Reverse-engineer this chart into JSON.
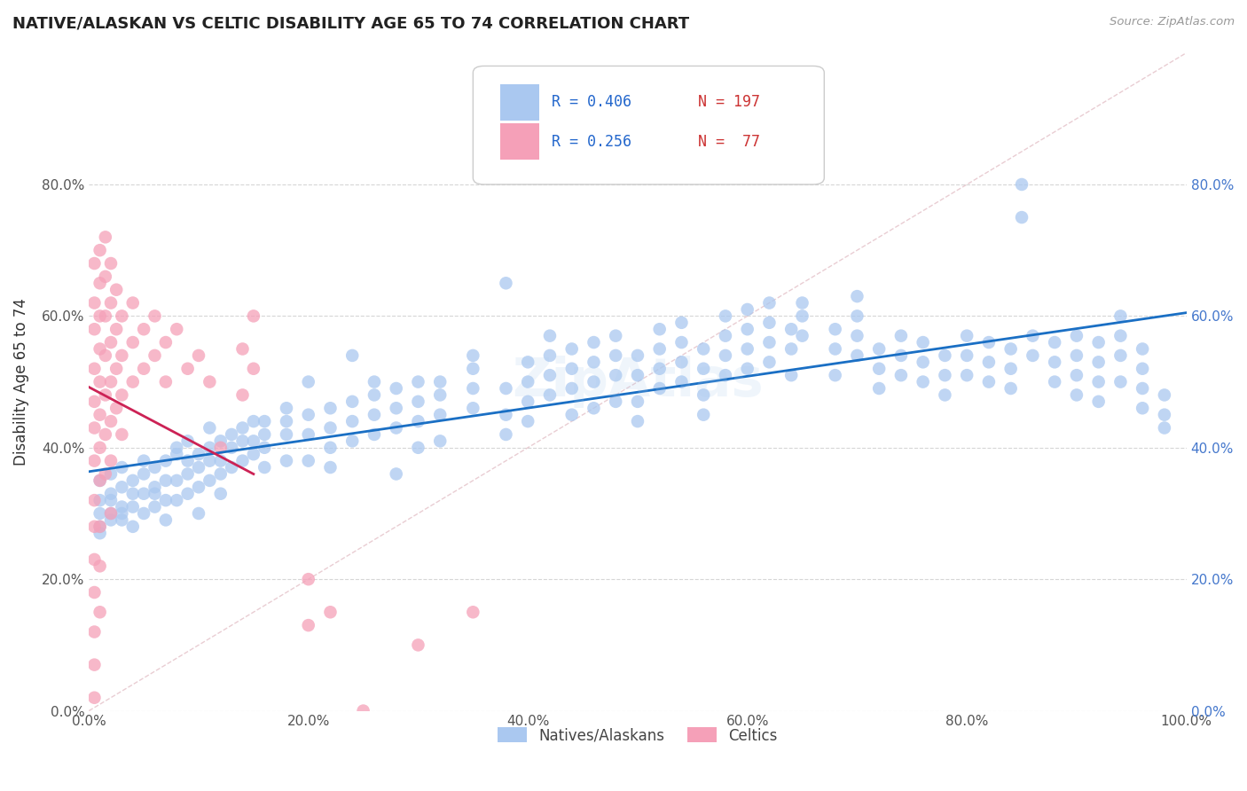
{
  "title": "NATIVE/ALASKAN VS CELTIC DISABILITY AGE 65 TO 74 CORRELATION CHART",
  "source": "Source: ZipAtlas.com",
  "ylabel": "Disability Age 65 to 74",
  "xlim": [
    0.0,
    1.0
  ],
  "ylim": [
    0.0,
    1.0
  ],
  "xticks": [
    0.0,
    0.2,
    0.4,
    0.6,
    0.8,
    1.0
  ],
  "yticks": [
    0.0,
    0.2,
    0.4,
    0.6,
    0.8
  ],
  "xtick_labels": [
    "0.0%",
    "20.0%",
    "40.0%",
    "60.0%",
    "80.0%",
    "100.0%"
  ],
  "ytick_labels": [
    "0.0%",
    "20.0%",
    "40.0%",
    "60.0%",
    "80.0%"
  ],
  "blue_color": "#aac8f0",
  "pink_color": "#f5a0b8",
  "blue_line_color": "#1a6fc4",
  "pink_line_color": "#cc2255",
  "diag_color": "#e0b8c0",
  "r_blue": 0.406,
  "n_blue": 197,
  "r_pink": 0.256,
  "n_pink": 77,
  "legend_label_blue": "Natives/Alaskans",
  "legend_label_pink": "Celtics",
  "watermark": "ZipAtlas",
  "blue_scatter": [
    [
      0.01,
      0.32
    ],
    [
      0.01,
      0.3
    ],
    [
      0.01,
      0.28
    ],
    [
      0.01,
      0.35
    ],
    [
      0.01,
      0.27
    ],
    [
      0.02,
      0.33
    ],
    [
      0.02,
      0.3
    ],
    [
      0.02,
      0.36
    ],
    [
      0.02,
      0.29
    ],
    [
      0.02,
      0.32
    ],
    [
      0.03,
      0.34
    ],
    [
      0.03,
      0.31
    ],
    [
      0.03,
      0.29
    ],
    [
      0.03,
      0.37
    ],
    [
      0.03,
      0.3
    ],
    [
      0.04,
      0.35
    ],
    [
      0.04,
      0.33
    ],
    [
      0.04,
      0.31
    ],
    [
      0.04,
      0.28
    ],
    [
      0.05,
      0.36
    ],
    [
      0.05,
      0.33
    ],
    [
      0.05,
      0.38
    ],
    [
      0.05,
      0.3
    ],
    [
      0.06,
      0.37
    ],
    [
      0.06,
      0.34
    ],
    [
      0.06,
      0.31
    ],
    [
      0.06,
      0.33
    ],
    [
      0.07,
      0.38
    ],
    [
      0.07,
      0.35
    ],
    [
      0.07,
      0.32
    ],
    [
      0.07,
      0.29
    ],
    [
      0.08,
      0.39
    ],
    [
      0.08,
      0.35
    ],
    [
      0.08,
      0.32
    ],
    [
      0.08,
      0.4
    ],
    [
      0.09,
      0.38
    ],
    [
      0.09,
      0.36
    ],
    [
      0.09,
      0.33
    ],
    [
      0.09,
      0.41
    ],
    [
      0.1,
      0.39
    ],
    [
      0.1,
      0.37
    ],
    [
      0.1,
      0.34
    ],
    [
      0.1,
      0.3
    ],
    [
      0.11,
      0.4
    ],
    [
      0.11,
      0.38
    ],
    [
      0.11,
      0.35
    ],
    [
      0.11,
      0.43
    ],
    [
      0.12,
      0.41
    ],
    [
      0.12,
      0.38
    ],
    [
      0.12,
      0.36
    ],
    [
      0.12,
      0.33
    ],
    [
      0.13,
      0.42
    ],
    [
      0.13,
      0.4
    ],
    [
      0.13,
      0.37
    ],
    [
      0.14,
      0.43
    ],
    [
      0.14,
      0.41
    ],
    [
      0.14,
      0.38
    ],
    [
      0.15,
      0.44
    ],
    [
      0.15,
      0.41
    ],
    [
      0.15,
      0.39
    ],
    [
      0.16,
      0.44
    ],
    [
      0.16,
      0.42
    ],
    [
      0.16,
      0.4
    ],
    [
      0.16,
      0.37
    ],
    [
      0.18,
      0.44
    ],
    [
      0.18,
      0.46
    ],
    [
      0.18,
      0.42
    ],
    [
      0.18,
      0.38
    ],
    [
      0.2,
      0.45
    ],
    [
      0.2,
      0.42
    ],
    [
      0.2,
      0.38
    ],
    [
      0.2,
      0.5
    ],
    [
      0.22,
      0.46
    ],
    [
      0.22,
      0.43
    ],
    [
      0.22,
      0.4
    ],
    [
      0.22,
      0.37
    ],
    [
      0.24,
      0.47
    ],
    [
      0.24,
      0.44
    ],
    [
      0.24,
      0.41
    ],
    [
      0.24,
      0.54
    ],
    [
      0.26,
      0.48
    ],
    [
      0.26,
      0.45
    ],
    [
      0.26,
      0.42
    ],
    [
      0.26,
      0.5
    ],
    [
      0.28,
      0.49
    ],
    [
      0.28,
      0.46
    ],
    [
      0.28,
      0.36
    ],
    [
      0.28,
      0.43
    ],
    [
      0.3,
      0.5
    ],
    [
      0.3,
      0.47
    ],
    [
      0.3,
      0.44
    ],
    [
      0.3,
      0.4
    ],
    [
      0.32,
      0.5
    ],
    [
      0.32,
      0.48
    ],
    [
      0.32,
      0.45
    ],
    [
      0.32,
      0.41
    ],
    [
      0.35,
      0.52
    ],
    [
      0.35,
      0.49
    ],
    [
      0.35,
      0.46
    ],
    [
      0.35,
      0.54
    ],
    [
      0.38,
      0.65
    ],
    [
      0.38,
      0.49
    ],
    [
      0.38,
      0.45
    ],
    [
      0.38,
      0.42
    ],
    [
      0.4,
      0.53
    ],
    [
      0.4,
      0.5
    ],
    [
      0.4,
      0.47
    ],
    [
      0.4,
      0.44
    ],
    [
      0.42,
      0.54
    ],
    [
      0.42,
      0.51
    ],
    [
      0.42,
      0.48
    ],
    [
      0.42,
      0.57
    ],
    [
      0.44,
      0.55
    ],
    [
      0.44,
      0.52
    ],
    [
      0.44,
      0.49
    ],
    [
      0.44,
      0.45
    ],
    [
      0.46,
      0.56
    ],
    [
      0.46,
      0.53
    ],
    [
      0.46,
      0.5
    ],
    [
      0.46,
      0.46
    ],
    [
      0.48,
      0.57
    ],
    [
      0.48,
      0.54
    ],
    [
      0.48,
      0.51
    ],
    [
      0.48,
      0.47
    ],
    [
      0.5,
      0.47
    ],
    [
      0.5,
      0.44
    ],
    [
      0.5,
      0.51
    ],
    [
      0.5,
      0.54
    ],
    [
      0.52,
      0.58
    ],
    [
      0.52,
      0.55
    ],
    [
      0.52,
      0.52
    ],
    [
      0.52,
      0.49
    ],
    [
      0.54,
      0.59
    ],
    [
      0.54,
      0.56
    ],
    [
      0.54,
      0.53
    ],
    [
      0.54,
      0.5
    ],
    [
      0.56,
      0.55
    ],
    [
      0.56,
      0.52
    ],
    [
      0.56,
      0.48
    ],
    [
      0.56,
      0.45
    ],
    [
      0.58,
      0.6
    ],
    [
      0.58,
      0.57
    ],
    [
      0.58,
      0.54
    ],
    [
      0.58,
      0.51
    ],
    [
      0.6,
      0.61
    ],
    [
      0.6,
      0.58
    ],
    [
      0.6,
      0.55
    ],
    [
      0.6,
      0.52
    ],
    [
      0.62,
      0.62
    ],
    [
      0.62,
      0.59
    ],
    [
      0.62,
      0.56
    ],
    [
      0.62,
      0.53
    ],
    [
      0.64,
      0.58
    ],
    [
      0.64,
      0.55
    ],
    [
      0.64,
      0.51
    ],
    [
      0.65,
      0.62
    ],
    [
      0.65,
      0.6
    ],
    [
      0.65,
      0.57
    ],
    [
      0.68,
      0.58
    ],
    [
      0.68,
      0.55
    ],
    [
      0.68,
      0.51
    ],
    [
      0.7,
      0.63
    ],
    [
      0.7,
      0.6
    ],
    [
      0.7,
      0.57
    ],
    [
      0.7,
      0.54
    ],
    [
      0.72,
      0.55
    ],
    [
      0.72,
      0.52
    ],
    [
      0.72,
      0.49
    ],
    [
      0.74,
      0.57
    ],
    [
      0.74,
      0.54
    ],
    [
      0.74,
      0.51
    ],
    [
      0.76,
      0.56
    ],
    [
      0.76,
      0.53
    ],
    [
      0.76,
      0.5
    ],
    [
      0.78,
      0.54
    ],
    [
      0.78,
      0.51
    ],
    [
      0.78,
      0.48
    ],
    [
      0.8,
      0.57
    ],
    [
      0.8,
      0.54
    ],
    [
      0.8,
      0.51
    ],
    [
      0.82,
      0.56
    ],
    [
      0.82,
      0.53
    ],
    [
      0.82,
      0.5
    ],
    [
      0.84,
      0.55
    ],
    [
      0.84,
      0.52
    ],
    [
      0.84,
      0.49
    ],
    [
      0.85,
      0.8
    ],
    [
      0.85,
      0.75
    ],
    [
      0.86,
      0.57
    ],
    [
      0.86,
      0.54
    ],
    [
      0.88,
      0.56
    ],
    [
      0.88,
      0.53
    ],
    [
      0.88,
      0.5
    ],
    [
      0.9,
      0.57
    ],
    [
      0.9,
      0.54
    ],
    [
      0.9,
      0.51
    ],
    [
      0.9,
      0.48
    ],
    [
      0.92,
      0.56
    ],
    [
      0.92,
      0.53
    ],
    [
      0.92,
      0.5
    ],
    [
      0.92,
      0.47
    ],
    [
      0.94,
      0.6
    ],
    [
      0.94,
      0.57
    ],
    [
      0.94,
      0.54
    ],
    [
      0.94,
      0.5
    ],
    [
      0.96,
      0.55
    ],
    [
      0.96,
      0.52
    ],
    [
      0.96,
      0.49
    ],
    [
      0.96,
      0.46
    ],
    [
      0.98,
      0.48
    ],
    [
      0.98,
      0.45
    ],
    [
      0.98,
      0.43
    ]
  ],
  "pink_scatter": [
    [
      0.005,
      0.68
    ],
    [
      0.005,
      0.62
    ],
    [
      0.005,
      0.58
    ],
    [
      0.005,
      0.52
    ],
    [
      0.005,
      0.47
    ],
    [
      0.005,
      0.43
    ],
    [
      0.005,
      0.38
    ],
    [
      0.005,
      0.32
    ],
    [
      0.005,
      0.28
    ],
    [
      0.005,
      0.23
    ],
    [
      0.005,
      0.18
    ],
    [
      0.005,
      0.12
    ],
    [
      0.005,
      0.07
    ],
    [
      0.005,
      0.02
    ],
    [
      0.01,
      0.7
    ],
    [
      0.01,
      0.65
    ],
    [
      0.01,
      0.6
    ],
    [
      0.01,
      0.55
    ],
    [
      0.01,
      0.5
    ],
    [
      0.01,
      0.45
    ],
    [
      0.01,
      0.4
    ],
    [
      0.01,
      0.35
    ],
    [
      0.01,
      0.28
    ],
    [
      0.01,
      0.22
    ],
    [
      0.01,
      0.15
    ],
    [
      0.015,
      0.72
    ],
    [
      0.015,
      0.66
    ],
    [
      0.015,
      0.6
    ],
    [
      0.015,
      0.54
    ],
    [
      0.015,
      0.48
    ],
    [
      0.015,
      0.42
    ],
    [
      0.015,
      0.36
    ],
    [
      0.02,
      0.68
    ],
    [
      0.02,
      0.62
    ],
    [
      0.02,
      0.56
    ],
    [
      0.02,
      0.5
    ],
    [
      0.02,
      0.44
    ],
    [
      0.02,
      0.38
    ],
    [
      0.02,
      0.3
    ],
    [
      0.025,
      0.64
    ],
    [
      0.025,
      0.58
    ],
    [
      0.025,
      0.52
    ],
    [
      0.025,
      0.46
    ],
    [
      0.03,
      0.6
    ],
    [
      0.03,
      0.54
    ],
    [
      0.03,
      0.48
    ],
    [
      0.03,
      0.42
    ],
    [
      0.04,
      0.62
    ],
    [
      0.04,
      0.56
    ],
    [
      0.04,
      0.5
    ],
    [
      0.05,
      0.58
    ],
    [
      0.05,
      0.52
    ],
    [
      0.06,
      0.6
    ],
    [
      0.06,
      0.54
    ],
    [
      0.07,
      0.56
    ],
    [
      0.07,
      0.5
    ],
    [
      0.08,
      0.58
    ],
    [
      0.09,
      0.52
    ],
    [
      0.1,
      0.54
    ],
    [
      0.11,
      0.5
    ],
    [
      0.12,
      0.4
    ],
    [
      0.14,
      0.55
    ],
    [
      0.14,
      0.48
    ],
    [
      0.15,
      0.6
    ],
    [
      0.15,
      0.52
    ],
    [
      0.2,
      0.2
    ],
    [
      0.2,
      0.13
    ],
    [
      0.22,
      0.15
    ],
    [
      0.25,
      0.0
    ],
    [
      0.3,
      0.1
    ],
    [
      0.35,
      0.15
    ]
  ]
}
